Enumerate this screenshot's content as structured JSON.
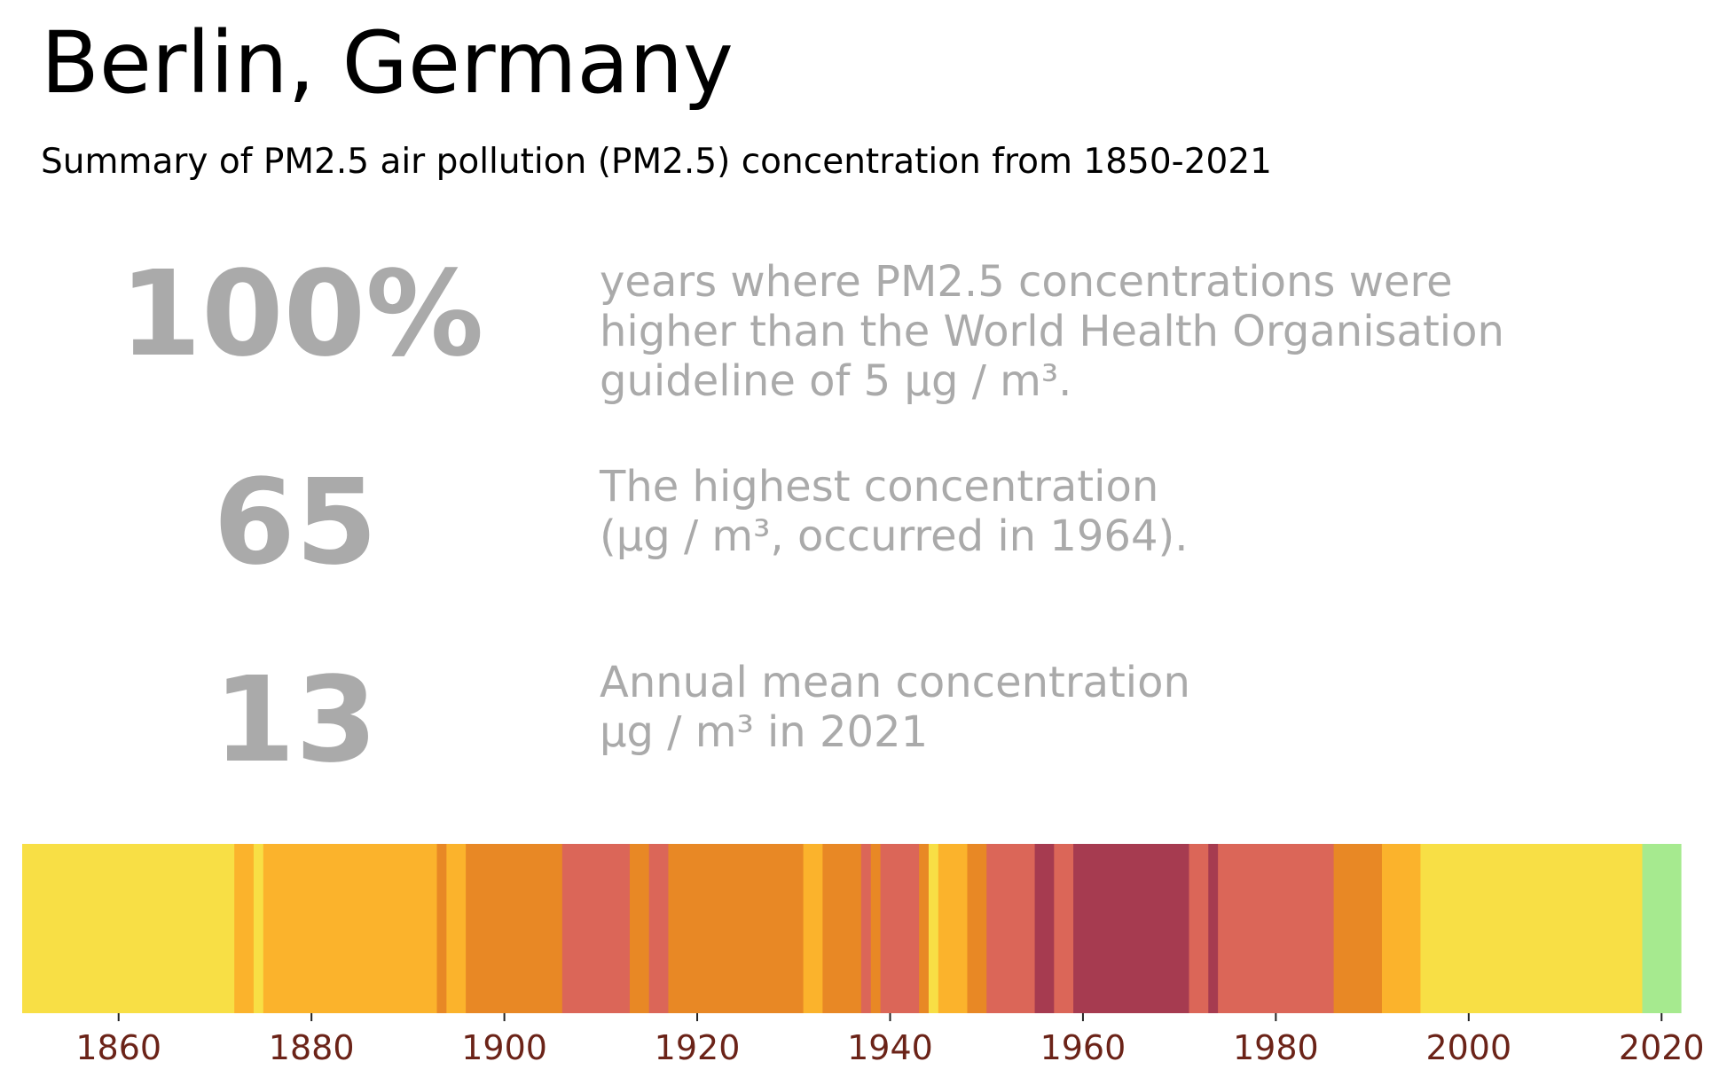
{
  "title": "Berlin, Germany",
  "subtitle": "Summary of PM2.5 air pollution (PM2.5) concentration from 1850-2021",
  "stats": [
    {
      "value": "100%",
      "text": "years where PM2.5 concentrations were\nhigher than the World Health Organisation\nguideline of 5 µg / m³."
    },
    {
      "value": "65",
      "text": "The highest concentration\n(µg / m³, occurred in 1964)."
    },
    {
      "value": "13",
      "text": "Annual mean concentration\nµg / m³ in 2021"
    }
  ],
  "colors": {
    "text_grey": "#aaaaaa",
    "tick_label": "#6b2318",
    "bands": {
      "1": "#a6ea8f",
      "2": "#f8df45",
      "3": "#fbb32c",
      "4": "#e88825",
      "5": "#db6658",
      "6": "#a63b50"
    }
  },
  "chart_data": {
    "type": "heatmap",
    "title": "",
    "xlabel": "",
    "ylabel": "",
    "xlim": [
      1850,
      2022
    ],
    "xticks": [
      1860,
      1880,
      1900,
      1920,
      1940,
      1960,
      1980,
      2000,
      2020
    ],
    "grid": false,
    "legend": "none",
    "segments": [
      {
        "start": 1850,
        "end": 1872,
        "band": 2
      },
      {
        "start": 1872,
        "end": 1874,
        "band": 3
      },
      {
        "start": 1874,
        "end": 1875,
        "band": 2
      },
      {
        "start": 1875,
        "end": 1893,
        "band": 3
      },
      {
        "start": 1893,
        "end": 1894,
        "band": 4
      },
      {
        "start": 1894,
        "end": 1896,
        "band": 3
      },
      {
        "start": 1896,
        "end": 1906,
        "band": 4
      },
      {
        "start": 1906,
        "end": 1913,
        "band": 5
      },
      {
        "start": 1913,
        "end": 1915,
        "band": 4
      },
      {
        "start": 1915,
        "end": 1917,
        "band": 5
      },
      {
        "start": 1917,
        "end": 1931,
        "band": 4
      },
      {
        "start": 1931,
        "end": 1933,
        "band": 3
      },
      {
        "start": 1933,
        "end": 1937,
        "band": 4
      },
      {
        "start": 1937,
        "end": 1938,
        "band": 5
      },
      {
        "start": 1938,
        "end": 1939,
        "band": 4
      },
      {
        "start": 1939,
        "end": 1943,
        "band": 5
      },
      {
        "start": 1943,
        "end": 1944,
        "band": 4
      },
      {
        "start": 1944,
        "end": 1945,
        "band": 2
      },
      {
        "start": 1945,
        "end": 1948,
        "band": 3
      },
      {
        "start": 1948,
        "end": 1950,
        "band": 4
      },
      {
        "start": 1950,
        "end": 1955,
        "band": 5
      },
      {
        "start": 1955,
        "end": 1957,
        "band": 6
      },
      {
        "start": 1957,
        "end": 1959,
        "band": 5
      },
      {
        "start": 1959,
        "end": 1971,
        "band": 6
      },
      {
        "start": 1971,
        "end": 1973,
        "band": 5
      },
      {
        "start": 1973,
        "end": 1974,
        "band": 6
      },
      {
        "start": 1974,
        "end": 1986,
        "band": 5
      },
      {
        "start": 1986,
        "end": 1991,
        "band": 4
      },
      {
        "start": 1991,
        "end": 1995,
        "band": 3
      },
      {
        "start": 1995,
        "end": 2018,
        "band": 2
      },
      {
        "start": 2018,
        "end": 2022,
        "band": 1
      }
    ]
  }
}
